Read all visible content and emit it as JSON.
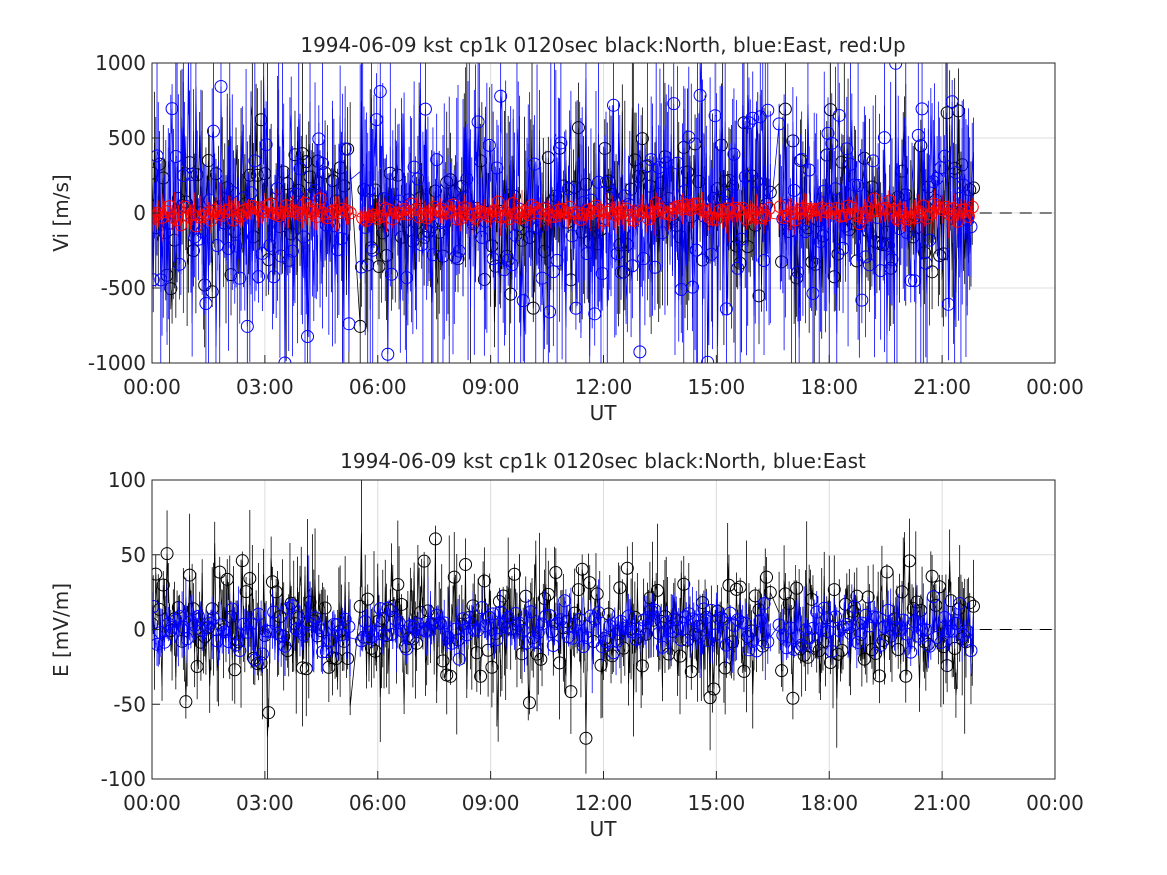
{
  "chart_data": [
    {
      "type": "scatter",
      "id": "vi",
      "title": "1994-06-09 kst cp1k 0120sec black:North, blue:East, red:Up",
      "xlabel": "UT",
      "ylabel": "Vi [m/s]",
      "xlim": [
        "00:00",
        "24:00"
      ],
      "ylim": [
        -1000,
        1000
      ],
      "xticks": [
        "00:00",
        "03:00",
        "06:00",
        "09:00",
        "12:00",
        "15:00",
        "18:00",
        "21:00",
        "00:00"
      ],
      "yticks": [
        -1000,
        -500,
        0,
        500,
        1000
      ],
      "grid": true,
      "data_time_range": [
        "00:00",
        "21:52"
      ],
      "data_gaps": [
        [
          "05:17",
          "05:30"
        ],
        [
          "16:27",
          "16:38"
        ]
      ],
      "series": [
        {
          "name": "North",
          "color": "#000000",
          "marker": "o",
          "amplitude": 500,
          "spread": 400
        },
        {
          "name": "East",
          "color": "#0000ff",
          "marker": "o",
          "amplitude": 700,
          "spread": 600
        },
        {
          "name": "Up",
          "color": "#ff0000",
          "marker": "o",
          "amplitude": 60,
          "spread": 80
        }
      ],
      "reference_line": {
        "y": 0,
        "from": "22:00",
        "to": "24:00",
        "style": "dashed",
        "color": "#000000"
      }
    },
    {
      "type": "scatter",
      "id": "e",
      "title": "1994-06-09 kst cp1k 0120sec black:North, blue:East",
      "xlabel": "UT",
      "ylabel": "E [mV/m]",
      "xlim": [
        "00:00",
        "24:00"
      ],
      "ylim": [
        -100,
        100
      ],
      "xticks": [
        "00:00",
        "03:00",
        "06:00",
        "09:00",
        "12:00",
        "15:00",
        "18:00",
        "21:00",
        "00:00"
      ],
      "yticks": [
        -100,
        -50,
        0,
        50,
        100
      ],
      "grid": true,
      "data_time_range": [
        "00:00",
        "21:52"
      ],
      "data_gaps": [
        [
          "05:17",
          "05:30"
        ],
        [
          "16:27",
          "16:38"
        ]
      ],
      "series": [
        {
          "name": "North",
          "color": "#000000",
          "marker": "o",
          "amplitude": 40,
          "spread": 25
        },
        {
          "name": "East",
          "color": "#0000ff",
          "marker": "o",
          "amplitude": 15,
          "spread": 12
        }
      ],
      "reference_line": {
        "y": 0,
        "from": "22:00",
        "to": "24:00",
        "style": "dashed",
        "color": "#000000"
      }
    }
  ]
}
